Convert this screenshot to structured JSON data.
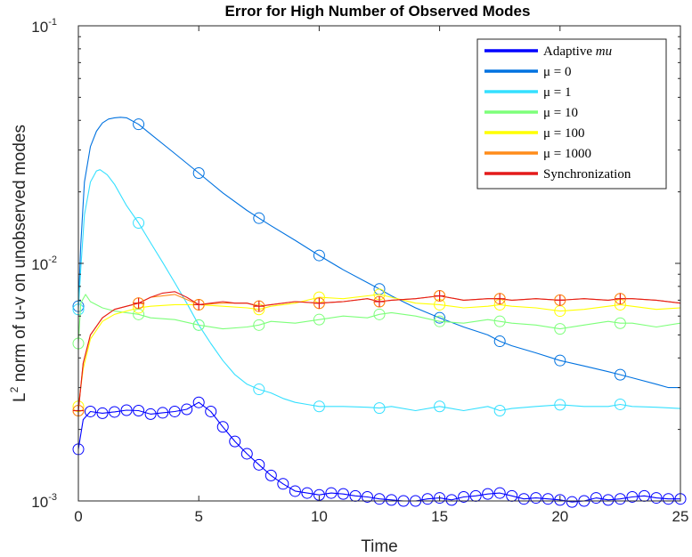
{
  "chart_data": {
    "type": "line",
    "title": "Error for High Number of Observed Modes",
    "xlabel": "Time",
    "ylabel_prefix": "L",
    "ylabel_sup": "2",
    "ylabel_rest": " norm of u-v on unobserved modes",
    "xlim": [
      0,
      25
    ],
    "ylim": [
      0.001,
      0.1
    ],
    "yscale": "log",
    "xticks": [
      0,
      5,
      10,
      15,
      20,
      25
    ],
    "xtick_labels": [
      "0",
      "5",
      "10",
      "15",
      "20",
      "25"
    ],
    "yticks": [
      0.001,
      0.01,
      0.1
    ],
    "ytick_bases": [
      "10",
      "10",
      "10"
    ],
    "ytick_exps": [
      "-3",
      "-2",
      "-1"
    ],
    "legend_position": "top-right",
    "series": [
      {
        "name": "Adaptive mu",
        "label_main": "Adaptive ",
        "label_italic": "mu",
        "color": "#0000ff",
        "marker": "circle",
        "x": [
          0,
          0.2,
          0.5,
          1,
          1.5,
          2,
          2.5,
          3,
          3.5,
          4,
          4.5,
          5,
          5.5,
          6,
          6.5,
          7,
          7.5,
          8,
          8.5,
          9,
          9.5,
          10,
          10.5,
          11,
          11.5,
          12,
          12.5,
          13,
          13.5,
          14,
          14.5,
          15,
          15.5,
          16,
          16.5,
          17,
          17.5,
          18,
          18.5,
          19,
          19.5,
          20,
          20.5,
          21,
          21.5,
          22,
          22.5,
          23,
          23.5,
          24,
          24.5,
          25
        ],
        "values": [
          0.00165,
          0.0022,
          0.00238,
          0.00234,
          0.00237,
          0.00241,
          0.0024,
          0.00232,
          0.00235,
          0.00238,
          0.00243,
          0.0026,
          0.00238,
          0.00205,
          0.00178,
          0.00158,
          0.00142,
          0.00128,
          0.00118,
          0.0011,
          0.00108,
          0.00106,
          0.00108,
          0.00107,
          0.00105,
          0.00104,
          0.00102,
          0.00101,
          0.001,
          0.001,
          0.00102,
          0.00103,
          0.00101,
          0.00104,
          0.00105,
          0.00107,
          0.00108,
          0.00105,
          0.00102,
          0.00103,
          0.00102,
          0.00101,
          0.00099,
          0.001,
          0.00103,
          0.00101,
          0.00102,
          0.00104,
          0.00105,
          0.00103,
          0.00102,
          0.00102
        ],
        "markers_x": [
          0,
          0.5,
          1,
          1.5,
          2,
          2.5,
          3,
          3.5,
          4,
          4.5,
          5,
          5.5,
          6,
          6.5,
          7,
          7.5,
          8,
          8.5,
          9,
          9.5,
          10,
          10.5,
          11,
          11.5,
          12,
          12.5,
          13,
          13.5,
          14,
          14.5,
          15,
          15.5,
          16,
          16.5,
          17,
          17.5,
          18,
          18.5,
          19,
          19.5,
          20,
          20.5,
          21,
          21.5,
          22,
          22.5,
          23,
          23.5,
          24,
          24.5,
          25
        ],
        "markers_y": [
          0.00165,
          0.00238,
          0.00234,
          0.00237,
          0.00241,
          0.0024,
          0.00232,
          0.00235,
          0.00238,
          0.00243,
          0.0026,
          0.00238,
          0.00205,
          0.00178,
          0.00158,
          0.00142,
          0.00128,
          0.00118,
          0.0011,
          0.00108,
          0.00106,
          0.00108,
          0.00107,
          0.00105,
          0.00104,
          0.00102,
          0.00101,
          0.001,
          0.001,
          0.00102,
          0.00103,
          0.00101,
          0.00104,
          0.00105,
          0.00107,
          0.00108,
          0.00105,
          0.00102,
          0.00103,
          0.00102,
          0.00101,
          0.00099,
          0.001,
          0.00103,
          0.00101,
          0.00102,
          0.00104,
          0.00105,
          0.00103,
          0.00102,
          0.00102
        ]
      },
      {
        "name": "mu = 0",
        "label_main": "μ = 0",
        "label_italic": "",
        "color": "#0072e0",
        "marker": "circle",
        "x": [
          0,
          0.1,
          0.25,
          0.5,
          0.75,
          1,
          1.25,
          1.5,
          1.75,
          2,
          2.5,
          3,
          4,
          5,
          6,
          7,
          7.5,
          8,
          9,
          10,
          11,
          12,
          12.5,
          13,
          14,
          15,
          16,
          17,
          17.5,
          18,
          19,
          20,
          21,
          22,
          22.5,
          23,
          24,
          24.5,
          25
        ],
        "values": [
          0.0066,
          0.012,
          0.022,
          0.031,
          0.036,
          0.039,
          0.0405,
          0.041,
          0.0412,
          0.041,
          0.0385,
          0.035,
          0.029,
          0.024,
          0.0198,
          0.0167,
          0.0155,
          0.0144,
          0.0125,
          0.0108,
          0.0094,
          0.0083,
          0.0078,
          0.0073,
          0.0065,
          0.0059,
          0.0054,
          0.005,
          0.0047,
          0.0045,
          0.0042,
          0.0039,
          0.0037,
          0.0035,
          0.0034,
          0.0033,
          0.0031,
          0.003,
          0.003
        ],
        "markers_x": [
          0,
          2.5,
          5,
          7.5,
          10,
          12.5,
          15,
          17.5,
          20,
          22.5
        ],
        "markers_y": [
          0.0066,
          0.0385,
          0.024,
          0.0155,
          0.0108,
          0.0078,
          0.0059,
          0.0047,
          0.0039,
          0.0034
        ]
      },
      {
        "name": "mu = 1",
        "label_main": "μ = 1",
        "label_italic": "",
        "color": "#35e0ff",
        "marker": "circle",
        "x": [
          0,
          0.1,
          0.25,
          0.5,
          0.75,
          0.9,
          1.2,
          1.5,
          2,
          2.5,
          3,
          3.5,
          4,
          4.5,
          5,
          5.5,
          6,
          6.5,
          7,
          7.5,
          8,
          8.5,
          9,
          9.5,
          10,
          11,
          12,
          12.5,
          13,
          14,
          15,
          16,
          17,
          17.5,
          18,
          19,
          20,
          21,
          22,
          22.5,
          23,
          24,
          25
        ],
        "values": [
          0.0064,
          0.0095,
          0.016,
          0.022,
          0.0245,
          0.0248,
          0.0236,
          0.0215,
          0.0175,
          0.0148,
          0.0122,
          0.0101,
          0.0083,
          0.0068,
          0.0055,
          0.0046,
          0.0039,
          0.0034,
          0.0031,
          0.00295,
          0.00285,
          0.0027,
          0.0026,
          0.00255,
          0.0025,
          0.0025,
          0.00248,
          0.00246,
          0.0025,
          0.0024,
          0.0025,
          0.0024,
          0.0025,
          0.0024,
          0.00245,
          0.0025,
          0.00254,
          0.0025,
          0.0025,
          0.00255,
          0.0025,
          0.00248,
          0.00245
        ],
        "markers_x": [
          0,
          2.5,
          5,
          7.5,
          10,
          12.5,
          15,
          17.5,
          20,
          22.5
        ],
        "markers_y": [
          0.0064,
          0.0148,
          0.0055,
          0.00295,
          0.0025,
          0.00246,
          0.0025,
          0.0024,
          0.00254,
          0.00255
        ]
      },
      {
        "name": "mu = 10",
        "label_main": "μ = 10",
        "label_italic": "",
        "color": "#7dff7a",
        "marker": "circle",
        "x": [
          0,
          0.1,
          0.3,
          0.5,
          1,
          1.5,
          2,
          2.5,
          3,
          4,
          5,
          6,
          7,
          7.5,
          8,
          9,
          10,
          11,
          12,
          12.5,
          13,
          14,
          15,
          16,
          17,
          17.5,
          18,
          19,
          20,
          21,
          22,
          22.5,
          23,
          24,
          25
        ],
        "values": [
          0.0046,
          0.0068,
          0.0074,
          0.0069,
          0.0065,
          0.0063,
          0.0062,
          0.0061,
          0.0059,
          0.0058,
          0.0055,
          0.0053,
          0.0054,
          0.0055,
          0.0057,
          0.0056,
          0.0058,
          0.006,
          0.0059,
          0.0061,
          0.0062,
          0.006,
          0.0057,
          0.0056,
          0.0058,
          0.0057,
          0.0056,
          0.0055,
          0.0053,
          0.0055,
          0.0057,
          0.0056,
          0.0056,
          0.0054,
          0.0056
        ],
        "markers_x": [
          0,
          2.5,
          5,
          7.5,
          10,
          12.5,
          15,
          17.5,
          20,
          22.5
        ],
        "markers_y": [
          0.0046,
          0.0061,
          0.0055,
          0.0055,
          0.0058,
          0.0061,
          0.0057,
          0.0057,
          0.0053,
          0.0056
        ]
      },
      {
        "name": "mu = 100",
        "label_main": "μ = 100",
        "label_italic": "",
        "color": "#ffff00",
        "marker": "circle",
        "x": [
          0,
          0.2,
          0.5,
          1,
          1.5,
          2,
          2.5,
          3,
          4,
          5,
          6,
          7,
          7.5,
          8,
          9,
          10,
          11,
          12,
          12.5,
          13,
          14,
          15,
          16,
          17,
          17.5,
          18,
          19,
          20,
          21,
          22,
          22.5,
          23,
          24,
          25
        ],
        "values": [
          0.0025,
          0.0036,
          0.0048,
          0.0057,
          0.0061,
          0.0063,
          0.0065,
          0.0066,
          0.0067,
          0.0067,
          0.0066,
          0.0065,
          0.0064,
          0.0066,
          0.0068,
          0.0072,
          0.0071,
          0.0073,
          0.0074,
          0.0072,
          0.0068,
          0.0067,
          0.0065,
          0.0066,
          0.0067,
          0.0066,
          0.0065,
          0.0063,
          0.0064,
          0.0066,
          0.0067,
          0.0066,
          0.0064,
          0.0065
        ],
        "markers_x": [
          0,
          2.5,
          5,
          7.5,
          10,
          12.5,
          15,
          17.5,
          20,
          22.5
        ],
        "markers_y": [
          0.0025,
          0.0065,
          0.0067,
          0.0064,
          0.0072,
          0.0074,
          0.0067,
          0.0067,
          0.0063,
          0.0067
        ]
      },
      {
        "name": "mu = 1000",
        "label_main": "μ = 1000",
        "label_italic": "",
        "color": "#ff8c1a",
        "marker": "circle",
        "x": [
          0,
          0.2,
          0.5,
          1,
          1.5,
          2,
          2.5,
          3,
          4,
          5,
          6,
          7,
          7.5,
          8,
          9,
          10,
          11,
          12,
          12.5,
          13,
          14,
          15,
          16,
          17,
          17.5,
          18,
          19,
          20,
          21,
          22,
          22.5,
          23,
          24,
          25
        ],
        "values": [
          0.0024,
          0.0038,
          0.005,
          0.0059,
          0.0064,
          0.0066,
          0.0068,
          0.0072,
          0.0074,
          0.0067,
          0.0068,
          0.0068,
          0.0066,
          0.0067,
          0.0069,
          0.0068,
          0.0069,
          0.0071,
          0.0069,
          0.007,
          0.0071,
          0.0073,
          0.007,
          0.0071,
          0.0071,
          0.007,
          0.0071,
          0.007,
          0.0071,
          0.007,
          0.0071,
          0.0071,
          0.007,
          0.0068
        ],
        "markers_x": [
          0,
          2.5,
          5,
          7.5,
          10,
          12.5,
          15,
          17.5,
          20,
          22.5
        ],
        "markers_y": [
          0.0024,
          0.0068,
          0.0067,
          0.0066,
          0.0068,
          0.0069,
          0.0073,
          0.0071,
          0.007,
          0.0071
        ]
      },
      {
        "name": "Synchronization",
        "label_main": "Synchronization",
        "label_italic": "",
        "color": "#e41a1a",
        "marker": "plus",
        "x": [
          0,
          0.2,
          0.5,
          1,
          1.5,
          2,
          2.5,
          3,
          3.5,
          4,
          4.5,
          5,
          5.5,
          6,
          6.5,
          7,
          7.5,
          8,
          9,
          10,
          11,
          12,
          12.5,
          13,
          14,
          15,
          16,
          17,
          17.5,
          18,
          19,
          20,
          21,
          22,
          22.5,
          23,
          24,
          25
        ],
        "values": [
          0.0024,
          0.0038,
          0.005,
          0.0059,
          0.0064,
          0.0066,
          0.0068,
          0.0072,
          0.0075,
          0.0076,
          0.0072,
          0.0067,
          0.0068,
          0.0069,
          0.0068,
          0.0068,
          0.0066,
          0.0067,
          0.0069,
          0.0068,
          0.0069,
          0.0071,
          0.0069,
          0.007,
          0.0071,
          0.0073,
          0.007,
          0.0071,
          0.0071,
          0.007,
          0.0071,
          0.007,
          0.0071,
          0.007,
          0.0071,
          0.0071,
          0.007,
          0.0068
        ],
        "markers_x": [
          0,
          2.5,
          5,
          7.5,
          10,
          12.5,
          15,
          17.5,
          20,
          22.5
        ],
        "markers_y": [
          0.0024,
          0.0068,
          0.0067,
          0.0066,
          0.0068,
          0.0069,
          0.0073,
          0.0071,
          0.007,
          0.0071
        ]
      }
    ]
  }
}
